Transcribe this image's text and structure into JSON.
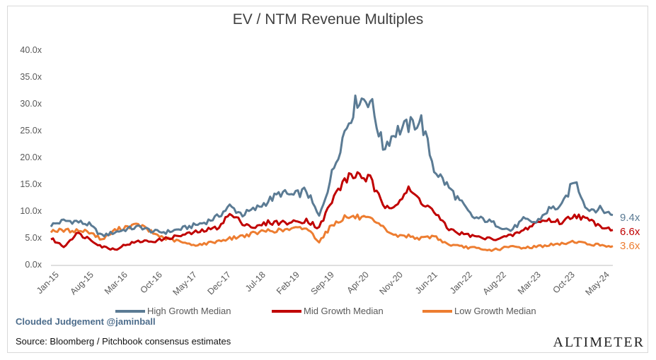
{
  "branding": {
    "handle": "Clouded Judgement @jaminball",
    "source": "Source: Bloomberg / Pitchbook consensus estimates",
    "logo": "Altimeter"
  },
  "chart_data": {
    "type": "line",
    "title": "EV / NTM Revenue Multiples",
    "xlabel": "",
    "ylabel": "",
    "ylim": [
      0,
      40
    ],
    "y_ticks": [
      "0.0x",
      "5.0x",
      "10.0x",
      "15.0x",
      "20.0x",
      "25.0x",
      "30.0x",
      "35.0x",
      "40.0x"
    ],
    "x_ticks": [
      "Jan-15",
      "Aug-15",
      "Mar-16",
      "Oct-16",
      "May-17",
      "Dec-17",
      "Jul-18",
      "Feb-19",
      "Sep-19",
      "Apr-20",
      "Nov-20",
      "Jun-21",
      "Jan-22",
      "Aug-22",
      "Mar-23",
      "Oct-23",
      "May-24"
    ],
    "x": [
      "Jan-15",
      "Apr-15",
      "Jul-15",
      "Oct-15",
      "Jan-16",
      "Apr-16",
      "Jul-16",
      "Oct-16",
      "Jan-17",
      "Apr-17",
      "Jul-17",
      "Oct-17",
      "Jan-18",
      "Apr-18",
      "Jul-18",
      "Oct-18",
      "Jan-19",
      "Apr-19",
      "Jul-19",
      "Oct-19",
      "Jan-20",
      "Mar-20",
      "May-20",
      "Aug-20",
      "Nov-20",
      "Feb-21",
      "Apr-21",
      "Jun-21",
      "Aug-21",
      "Oct-21",
      "Dec-21",
      "Feb-22",
      "Apr-22",
      "Jun-22",
      "Aug-22",
      "Oct-22",
      "Jan-23",
      "Apr-23",
      "Jul-23",
      "Oct-23",
      "Jan-24",
      "Mar-24",
      "May-24",
      "Jul-24",
      "Aug-24"
    ],
    "series": [
      {
        "name": "High Growth Median",
        "color": "#5b7b94",
        "end_label": "9.4x",
        "values": [
          7.5,
          8.3,
          8.2,
          7.6,
          5.5,
          6.2,
          6.8,
          7.2,
          6.3,
          6.2,
          6.7,
          7.3,
          8.0,
          9.0,
          11.0,
          9.5,
          10.5,
          12.0,
          13.5,
          13.0,
          14.0,
          9.0,
          17.0,
          25.0,
          31.0,
          31.0,
          22.0,
          25.0,
          26.0,
          27.0,
          18.0,
          15.0,
          12.0,
          9.0,
          8.5,
          7.5,
          6.5,
          8.5,
          8.0,
          10.5,
          11.0,
          16.0,
          10.5,
          10.5,
          9.4
        ]
      },
      {
        "name": "Mid Growth Median",
        "color": "#c00000",
        "end_label": "6.6x",
        "values": [
          5.0,
          3.5,
          6.0,
          5.0,
          3.5,
          3.0,
          4.0,
          4.5,
          4.5,
          5.0,
          5.5,
          6.0,
          6.5,
          7.0,
          9.5,
          8.0,
          7.0,
          8.0,
          8.0,
          8.0,
          8.5,
          7.0,
          12.0,
          16.0,
          17.0,
          16.0,
          11.0,
          11.5,
          14.0,
          12.0,
          10.0,
          7.0,
          6.0,
          5.5,
          5.0,
          5.0,
          5.5,
          6.5,
          8.0,
          8.5,
          8.0,
          9.5,
          8.5,
          7.5,
          6.6
        ]
      },
      {
        "name": "Low Growth Median",
        "color": "#ed7d31",
        "end_label": "3.6x",
        "values": [
          6.5,
          6.5,
          6.5,
          6.3,
          4.8,
          6.5,
          7.3,
          7.5,
          6.0,
          5.0,
          4.5,
          3.8,
          4.0,
          4.5,
          5.0,
          5.5,
          6.0,
          6.5,
          6.5,
          6.8,
          7.0,
          4.5,
          7.5,
          9.0,
          9.0,
          8.5,
          7.0,
          5.5,
          5.5,
          5.0,
          5.5,
          4.0,
          3.5,
          3.3,
          2.8,
          3.0,
          3.5,
          3.3,
          3.5,
          3.8,
          4.0,
          4.5,
          4.0,
          3.8,
          3.6
        ]
      }
    ],
    "legend_position": "bottom",
    "grid": false
  }
}
